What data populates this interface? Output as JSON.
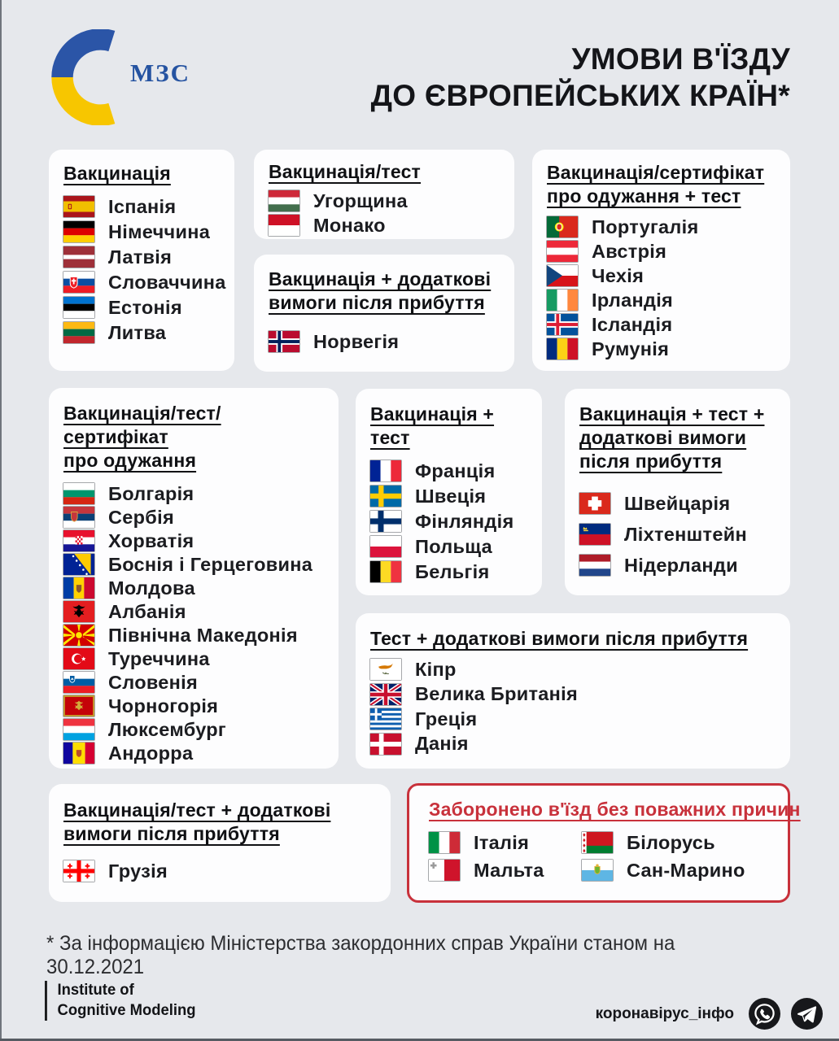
{
  "header": {
    "logo_text": "МЗС",
    "title_line1": "УМОВИ В'ЇЗДУ",
    "title_line2": "ДО ЄВРОПЕЙСЬКИХ КРАЇН*"
  },
  "colors": {
    "background": "#E6E8EC",
    "card": "#FDFDFE",
    "accent_red": "#C8313B",
    "logo_blue": "#2B55A7",
    "logo_yellow": "#F7C600"
  },
  "cards": [
    {
      "id": "vaccination",
      "title": "Вакцинація",
      "countries": [
        {
          "flag": "spain",
          "name": "Іспанія"
        },
        {
          "flag": "germany",
          "name": "Німеччина"
        },
        {
          "flag": "latvia",
          "name": "Латвія"
        },
        {
          "flag": "slovakia",
          "name": "Словаччина"
        },
        {
          "flag": "estonia",
          "name": "Естонія"
        },
        {
          "flag": "lithuania",
          "name": "Литва"
        }
      ]
    },
    {
      "id": "vaccination-test",
      "title": "Вакцинація/тест",
      "countries": [
        {
          "flag": "hungary",
          "name": "Угорщина"
        },
        {
          "flag": "monaco",
          "name": "Монако"
        }
      ]
    },
    {
      "id": "vaccination-recovery-cert-test",
      "title": "Вакцинація/сертифікат\nпро одужання + тест",
      "countries": [
        {
          "flag": "portugal",
          "name": "Португалія"
        },
        {
          "flag": "austria",
          "name": "Австрія"
        },
        {
          "flag": "czechia",
          "name": "Чехія"
        },
        {
          "flag": "ireland",
          "name": "Ірландія"
        },
        {
          "flag": "iceland",
          "name": "Ісландія"
        },
        {
          "flag": "romania",
          "name": "Румунія"
        }
      ]
    },
    {
      "id": "vaccination-extra-requirements",
      "title": "Вакцинація + додаткові\nвимоги після прибуття",
      "countries": [
        {
          "flag": "norway",
          "name": "Норвегія"
        }
      ]
    },
    {
      "id": "vaccination-test-recovery-cert",
      "title": "Вакцинація/тест/сертифікат\nпро одужання",
      "countries": [
        {
          "flag": "bulgaria",
          "name": "Болгарія"
        },
        {
          "flag": "serbia",
          "name": "Сербія"
        },
        {
          "flag": "croatia",
          "name": "Хорватія"
        },
        {
          "flag": "bosnia",
          "name": "Боснія і Герцеговина"
        },
        {
          "flag": "moldova",
          "name": "Молдова"
        },
        {
          "flag": "albania",
          "name": "Албанія"
        },
        {
          "flag": "northmacedonia",
          "name": "Північна Македонія"
        },
        {
          "flag": "turkey",
          "name": "Туреччина"
        },
        {
          "flag": "slovenia",
          "name": "Словенія"
        },
        {
          "flag": "montenegro",
          "name": "Чорногорія"
        },
        {
          "flag": "luxembourg",
          "name": "Люксембург"
        },
        {
          "flag": "andorra",
          "name": "Андорра"
        }
      ]
    },
    {
      "id": "vaccination-plus-test",
      "title": "Вакцинація + тест",
      "countries": [
        {
          "flag": "france",
          "name": "Франція"
        },
        {
          "flag": "sweden",
          "name": "Швеція"
        },
        {
          "flag": "finland",
          "name": "Фінляндія"
        },
        {
          "flag": "poland",
          "name": "Польща"
        },
        {
          "flag": "belgium",
          "name": "Бельгія"
        }
      ]
    },
    {
      "id": "vaccination-test-extra-requirements",
      "title": "Вакцинація + тест +\nдодаткові вимоги\nпісля прибуття",
      "countries": [
        {
          "flag": "switzerland",
          "name": "Швейцарія"
        },
        {
          "flag": "liechtenstein",
          "name": "Ліхтенштейн"
        },
        {
          "flag": "netherlands",
          "name": "Нідерланди"
        }
      ]
    },
    {
      "id": "test-extra-requirements",
      "title": "Тест + додаткові вимоги після прибуття",
      "countries": [
        {
          "flag": "cyprus",
          "name": "Кіпр"
        },
        {
          "flag": "uk",
          "name": "Велика Британія"
        },
        {
          "flag": "greece",
          "name": "Греція"
        },
        {
          "flag": "denmark",
          "name": "Данія"
        }
      ]
    },
    {
      "id": "vaccination-or-test-extra-requirements",
      "title": "Вакцинація/тест + додаткові\nвимоги після прибуття",
      "countries": [
        {
          "flag": "georgia",
          "name": "Грузія"
        }
      ]
    },
    {
      "id": "entry-banned",
      "title": "Заборонено в'їзд без поважних причин",
      "countries": [
        {
          "flag": "italy",
          "name": "Італія"
        },
        {
          "flag": "belarus",
          "name": "Білорусь"
        },
        {
          "flag": "malta",
          "name": "Мальта"
        },
        {
          "flag": "sanmarino",
          "name": "Сан-Марино"
        }
      ]
    }
  ],
  "footnote": "* За інформацією Міністерства закордонних справ України станом на 30.12.2021",
  "footer": {
    "org_line1": "Institute of",
    "org_line2": "Cognitive Modeling",
    "channel_name": "коронавірус_інфо",
    "social_icons": [
      "viber-icon",
      "telegram-icon"
    ]
  }
}
